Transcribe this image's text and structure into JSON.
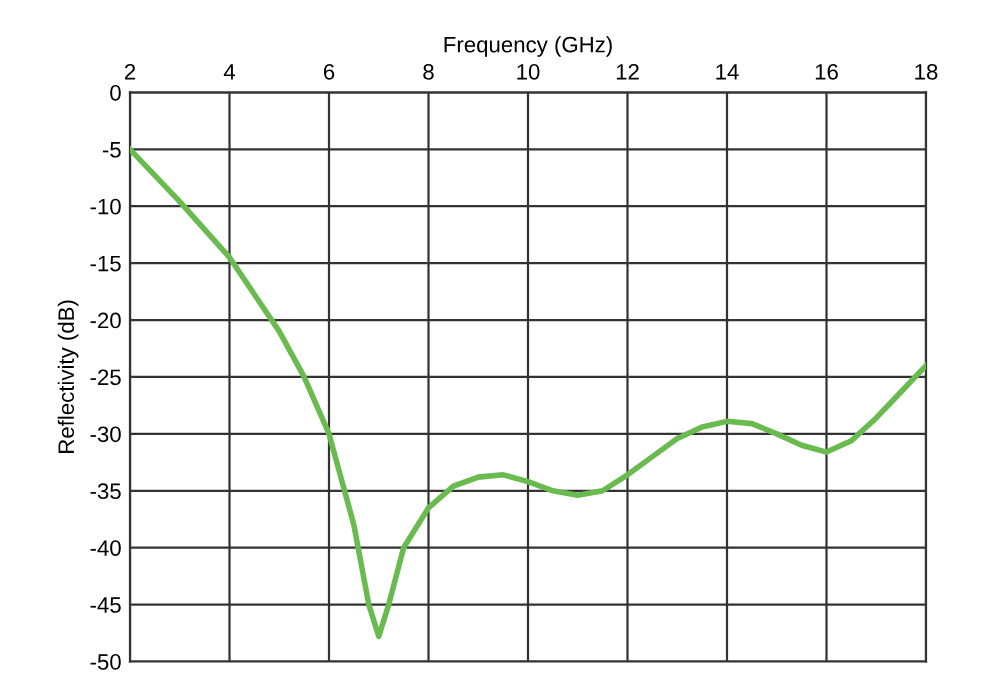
{
  "chart_data": {
    "type": "line",
    "xlabel": "Frequency (GHz)",
    "ylabel": "Reflectivity (dB)",
    "xlim": [
      2,
      18
    ],
    "xticks": [
      2,
      4,
      6,
      8,
      10,
      12,
      14,
      16,
      18
    ],
    "ylim": [
      -50,
      0
    ],
    "yticks": [
      0,
      -5,
      -10,
      -15,
      -20,
      -25,
      -30,
      -35,
      -40,
      -45,
      -50
    ],
    "grid": true,
    "marker": "none",
    "line_style": "solid",
    "series": [
      {
        "color": "#6abb4f",
        "x": [
          2,
          3,
          4,
          5,
          5.5,
          6,
          6.5,
          6.8,
          7,
          7.2,
          7.5,
          8,
          8.5,
          9,
          9.5,
          10,
          10.5,
          11,
          11.5,
          12,
          12.5,
          13,
          13.5,
          14,
          14.5,
          15,
          15.5,
          16,
          16.5,
          17,
          17.5,
          18
        ],
        "values": [
          -5,
          -9.6,
          -14.5,
          -21,
          -25,
          -30,
          -38,
          -45,
          -47.8,
          -45,
          -40,
          -36.5,
          -34.6,
          -33.8,
          -33.6,
          -34.2,
          -35,
          -35.4,
          -35,
          -33.6,
          -32,
          -30.4,
          -29.4,
          -28.9,
          -29.1,
          -30,
          -31,
          -31.6,
          -30.6,
          -28.6,
          -26.3,
          -24
        ]
      }
    ]
  }
}
